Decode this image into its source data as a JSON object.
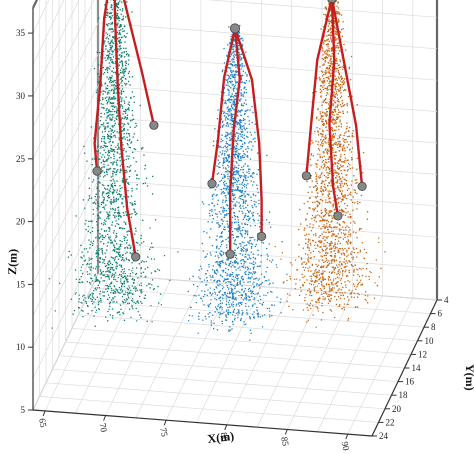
{
  "chart_data": {
    "type": "scatter",
    "xlabel": "X(m)",
    "ylabel": "Y(m)",
    "zlabel": "Z(m)",
    "x_ticks": [
      "65",
      "70",
      "75",
      "80",
      "85",
      "90"
    ],
    "y_ticks": [
      "4",
      "6",
      "8",
      "10",
      "12",
      "14",
      "16",
      "18",
      "20",
      "22",
      "24"
    ],
    "z_ticks": [
      "5",
      "10",
      "15",
      "20",
      "25",
      "30",
      "35"
    ],
    "xlim": [
      64,
      92
    ],
    "ylim": [
      4,
      24
    ],
    "zlim": [
      5,
      37
    ],
    "grid": true,
    "colors": {
      "tree_1": "#0a7d70",
      "tree_2": "#1f7fc4",
      "tree_3": "#c8640f",
      "skeleton": "#c41e1e",
      "node": "#888888"
    },
    "series": [
      {
        "apex": [
          68,
          14,
          36
        ],
        "base": [
          68,
          14,
          8
        ],
        "skeleton": [
          [
            [
              68,
              14,
              36
            ],
            [
              67.2,
              14,
              31
            ],
            [
              67,
              14.5,
              26
            ],
            [
              66.4,
              14,
              21
            ],
            [
              66.6,
              14,
              18.8
            ]
          ],
          [
            [
              68,
              14,
              36
            ],
            [
              68.1,
              14,
              31
            ],
            [
              68.3,
              14,
              26
            ],
            [
              68.6,
              14,
              21
            ],
            [
              69.1,
              14,
              16
            ],
            [
              69.8,
              14,
              12.2
            ]
          ],
          [
            [
              68,
              14,
              36
            ],
            [
              69,
              14,
              32
            ],
            [
              70.3,
              14,
              27
            ],
            [
              71.3,
              14,
              22.8
            ]
          ]
        ]
      },
      {
        "apex": [
          78,
          14,
          31
        ],
        "base": [
          78,
          14,
          8
        ],
        "skeleton": [
          [
            [
              78,
              14,
              31
            ],
            [
              77.1,
              14,
              27
            ],
            [
              76.6,
              14,
              22
            ],
            [
              76.1,
              14,
              18.5
            ]
          ],
          [
            [
              78,
              14,
              31
            ],
            [
              78.4,
              14,
              27
            ],
            [
              77.9,
              14,
              23
            ],
            [
              77.6,
              14,
              18
            ],
            [
              77.6,
              14,
              13
            ]
          ],
          [
            [
              78,
              14,
              31
            ],
            [
              79.4,
              14,
              27
            ],
            [
              80,
              14,
              22
            ],
            [
              80.2,
              14,
              17.5
            ],
            [
              80.2,
              14,
              14.6
            ]
          ]
        ]
      },
      {
        "apex": [
          86,
          14,
          34
        ],
        "base": [
          86,
          14,
          10
        ],
        "skeleton": [
          [
            [
              86,
              14,
              34
            ],
            [
              84.8,
              14,
              29
            ],
            [
              84.3,
              14,
              24
            ],
            [
              83.9,
              14,
              19.7
            ]
          ],
          [
            [
              86,
              14,
              34
            ],
            [
              86.2,
              14,
              29
            ],
            [
              85.8,
              14,
              24
            ],
            [
              86.1,
              14,
              19
            ],
            [
              86.5,
              14,
              16.7
            ]
          ],
          [
            [
              86,
              14,
              34
            ],
            [
              87,
              14,
              29
            ],
            [
              88,
              14,
              24
            ],
            [
              88.5,
              14,
              19.2
            ]
          ]
        ]
      }
    ]
  }
}
